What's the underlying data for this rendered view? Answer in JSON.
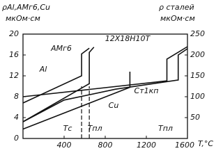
{
  "chart_data": {
    "type": "line",
    "y_label": "ρAl,AMг6,Cu",
    "y_unit": "мкОм·см",
    "y2_label": "ρ сталей",
    "y2_unit": "мкОм·см",
    "x_label": "T,°C",
    "xlim": [
      0,
      1600
    ],
    "xticks": [
      400,
      800,
      1200,
      1600
    ],
    "ylim": [
      0,
      20
    ],
    "yticks": [
      0,
      4,
      8,
      12,
      16,
      20
    ],
    "y2lim": [
      0,
      250
    ],
    "y2ticks": [
      50,
      100,
      150,
      200,
      250
    ],
    "series": [
      {
        "name": "AMг6",
        "color": "#111",
        "x": [
          0,
          570,
          570,
          645
        ],
        "values": [
          6.8,
          12,
          16.2,
          17.3
        ]
      },
      {
        "name": "Al",
        "color": "#111",
        "x": [
          0,
          645,
          645,
          690
        ],
        "values": [
          3.2,
          10.5,
          16.5,
          17.5
        ]
      },
      {
        "name": "Cu",
        "color": "#111",
        "x": [
          0,
          1040,
          1040
        ],
        "values": [
          1.8,
          9.8,
          12.8
        ]
      },
      {
        "name": "12X18H10T",
        "color": "#111",
        "axis": "y2",
        "x": [
          0,
          1400,
          1400,
          1600
        ],
        "values": [
          100,
          138,
          190,
          220
        ]
      },
      {
        "name": "Ст1кп",
        "color": "#111",
        "axis": "y2",
        "x": [
          0,
          400,
          900,
          1510,
          1510,
          1600
        ],
        "values": [
          40,
          92,
          118,
          140,
          200,
          215
        ]
      }
    ],
    "markers": [
      {
        "label": "Tс",
        "x": 570
      },
      {
        "label": "Tпл",
        "x": 645
      },
      {
        "label": "Tпл",
        "x": 1400
      }
    ]
  }
}
